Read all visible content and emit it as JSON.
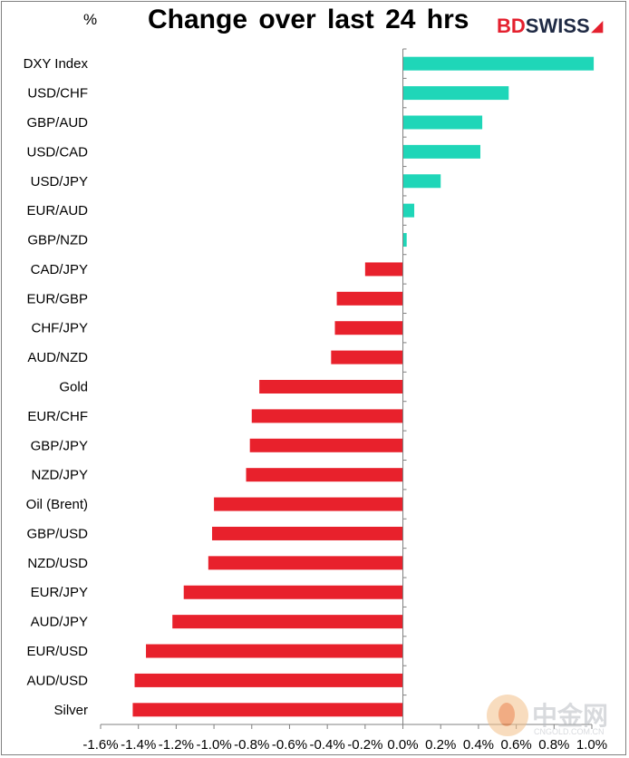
{
  "header": {
    "unit_label": "%",
    "title": "Change over last 24 hrs",
    "logo": {
      "part1": "BD",
      "part2": "SWISS",
      "mark": "◢"
    }
  },
  "watermark": {
    "brand": "中金网",
    "domain": "CNGOLD.COM.CN"
  },
  "colors": {
    "positive": "#1fd6b8",
    "negative": "#e8212c",
    "axis": "#808080"
  },
  "chart_data": {
    "type": "bar",
    "orientation": "horizontal",
    "title": "Change over last 24 hrs",
    "ylabel": "%",
    "xlim": [
      -1.6,
      1.0
    ],
    "xticks": [
      -1.6,
      -1.4,
      -1.2,
      -1.0,
      -0.8,
      -0.6,
      -0.4,
      -0.2,
      0.0,
      0.2,
      0.4,
      0.6,
      0.8,
      1.0
    ],
    "xtick_labels": [
      "-1.6%",
      "-1.4%",
      "-1.2%",
      "-1.0%",
      "-0.8%",
      "-0.6%",
      "-0.4%",
      "-0.2%",
      "0.0%",
      "0.2%",
      "0.4%",
      "0.6%",
      "0.8%",
      "1.0%"
    ],
    "grid": false,
    "legend": "none",
    "categories": [
      "DXY Index",
      "USD/CHF",
      "GBP/AUD",
      "USD/CAD",
      "USD/JPY",
      "EUR/AUD",
      "GBP/NZD",
      "CAD/JPY",
      "EUR/GBP",
      "CHF/JPY",
      "AUD/NZD",
      "Gold",
      "EUR/CHF",
      "GBP/JPY",
      "NZD/JPY",
      "Oil (Brent)",
      "GBP/USD",
      "NZD/USD",
      "EUR/JPY",
      "AUD/JPY",
      "EUR/USD",
      "AUD/USD",
      "Silver"
    ],
    "values": [
      1.01,
      0.56,
      0.42,
      0.41,
      0.2,
      0.06,
      0.02,
      -0.2,
      -0.35,
      -0.36,
      -0.38,
      -0.76,
      -0.8,
      -0.81,
      -0.83,
      -1.0,
      -1.01,
      -1.03,
      -1.16,
      -1.22,
      -1.36,
      -1.42,
      -1.43
    ]
  }
}
